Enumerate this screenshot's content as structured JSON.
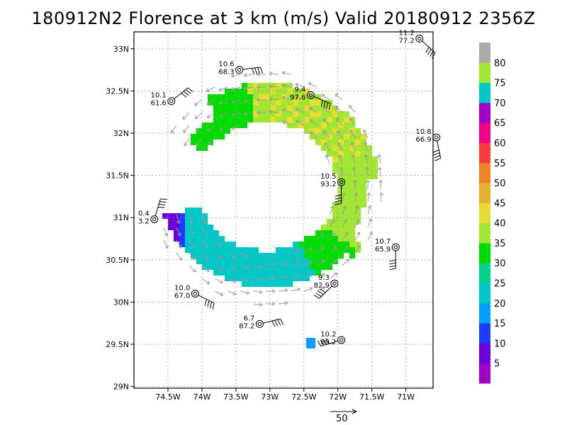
{
  "title": "180912N2 Florence at 3 km (m/s) Valid 20180912  2356Z",
  "map": {
    "lon_range": [
      -75.0,
      -70.6
    ],
    "lat_range": [
      28.98,
      33.2
    ],
    "lon_ticks": [
      {
        "v": -74.5,
        "label": "74.5W"
      },
      {
        "v": -74.0,
        "label": "74W"
      },
      {
        "v": -73.5,
        "label": "73.5W"
      },
      {
        "v": -73.0,
        "label": "73W"
      },
      {
        "v": -72.5,
        "label": "72.5W"
      },
      {
        "v": -72.0,
        "label": "72W"
      },
      {
        "v": -71.5,
        "label": "71.5W"
      },
      {
        "v": -71.0,
        "label": "71W"
      }
    ],
    "lat_ticks": [
      {
        "v": 29.0,
        "label": "29N"
      },
      {
        "v": 29.5,
        "label": "29.5N"
      },
      {
        "v": 30.0,
        "label": "30N"
      },
      {
        "v": 30.5,
        "label": "30.5N"
      },
      {
        "v": 31.0,
        "label": "31N"
      },
      {
        "v": 31.5,
        "label": "31.5N"
      },
      {
        "v": 32.0,
        "label": "32N"
      },
      {
        "v": 32.5,
        "label": "32.5N"
      },
      {
        "v": 33.0,
        "label": "33N"
      }
    ],
    "grid": true,
    "center": {
      "lon": -73.05,
      "lat": 31.35
    }
  },
  "colorbar": {
    "labels": [
      "5",
      "10",
      "15",
      "20",
      "25",
      "30",
      "35",
      "40",
      "45",
      "50",
      "55",
      "60",
      "65",
      "70",
      "75",
      "80"
    ],
    "colors": [
      "#a000c8",
      "#6e00dc",
      "#1e3cff",
      "#00a0ff",
      "#00c8c8",
      "#00d28c",
      "#00dc00",
      "#a0e632",
      "#e6dc32",
      "#e6af2d",
      "#f08228",
      "#fa3c3c",
      "#f00082",
      "#a000c8",
      "#00c8c8",
      "#a0e632",
      "#aaaaaa"
    ]
  },
  "stations": [
    {
      "lon": -70.8,
      "lat": 33.12,
      "top": "11.2",
      "bottom": "77.2"
    },
    {
      "lon": -73.45,
      "lat": 32.75,
      "top": "10.6",
      "bottom": "68.3"
    },
    {
      "lon": -74.45,
      "lat": 32.38,
      "top": "10.1",
      "bottom": "61.6"
    },
    {
      "lon": -72.4,
      "lat": 32.45,
      "top": "9.4",
      "bottom": "97.6"
    },
    {
      "lon": -70.55,
      "lat": 31.95,
      "top": "10.8",
      "bottom": "66.9"
    },
    {
      "lon": -71.95,
      "lat": 31.42,
      "top": "10.5",
      "bottom": "93.2"
    },
    {
      "lon": -74.7,
      "lat": 30.98,
      "top": "0.4",
      "bottom": "3.2"
    },
    {
      "lon": -71.15,
      "lat": 30.65,
      "top": "10.7",
      "bottom": "65.9"
    },
    {
      "lon": -72.05,
      "lat": 30.22,
      "top": "9.3",
      "bottom": "82.9"
    },
    {
      "lon": -74.1,
      "lat": 30.1,
      "top": "10.0",
      "bottom": "67.0"
    },
    {
      "lon": -73.15,
      "lat": 29.74,
      "top": "6.7",
      "bottom": "87.2"
    },
    {
      "lon": -71.95,
      "lat": 29.55,
      "top": "10.2",
      "bottom": "69.2"
    }
  ],
  "reference_vector": {
    "label": "50"
  }
}
